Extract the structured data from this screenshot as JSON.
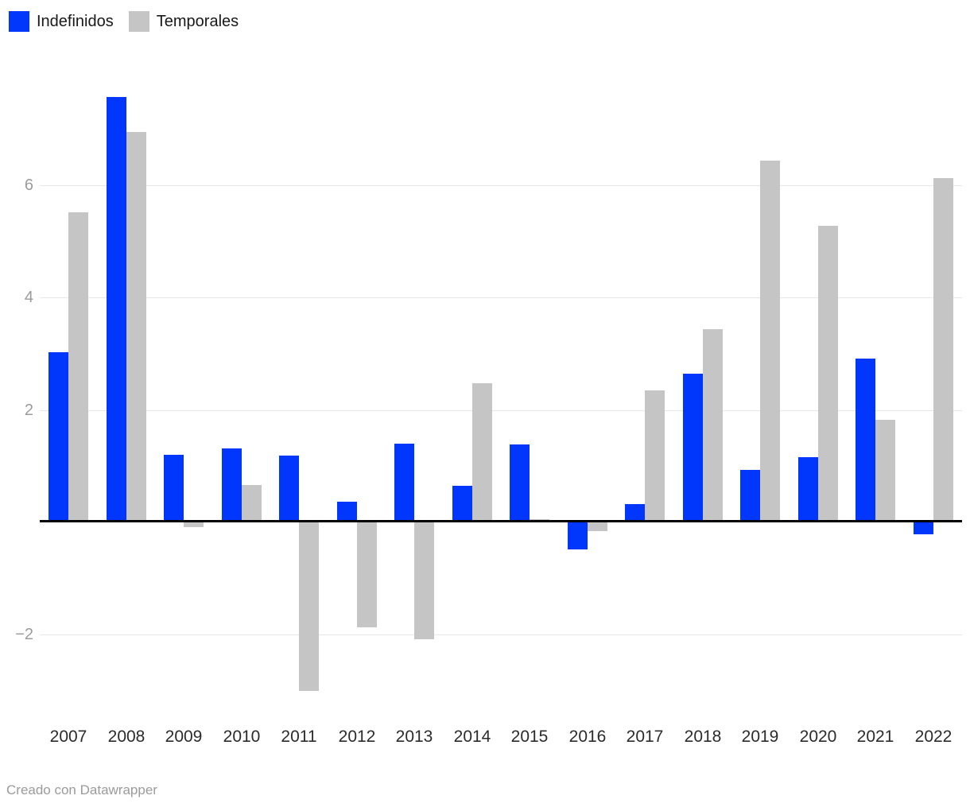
{
  "footer": {
    "text": "Creado con Datawrapper"
  },
  "chart_data": {
    "type": "bar",
    "title": "",
    "xlabel": "",
    "ylabel": "",
    "categories": [
      "2007",
      "2008",
      "2009",
      "2010",
      "2011",
      "2012",
      "2013",
      "2014",
      "2015",
      "2016",
      "2017",
      "2018",
      "2019",
      "2020",
      "2021",
      "2022"
    ],
    "series": [
      {
        "name": "Indefinidos",
        "color": "#0137fd",
        "values": [
          3.03,
          7.57,
          1.2,
          1.31,
          1.19,
          0.37,
          1.4,
          0.65,
          1.39,
          -0.48,
          0.33,
          2.64,
          0.93,
          1.16,
          2.91,
          -0.21
        ]
      },
      {
        "name": "Temporales",
        "color": "#c5c5c5",
        "values": [
          5.51,
          6.95,
          -0.08,
          0.67,
          -3.0,
          -1.86,
          -2.08,
          2.47,
          0.06,
          -0.16,
          2.35,
          3.43,
          6.43,
          5.28,
          1.83,
          6.13
        ]
      }
    ],
    "yticks": [
      -2,
      2,
      4,
      6
    ],
    "ylim": [
      -3.1,
      7.8
    ],
    "grid": true,
    "zero_line": true,
    "legend_position": "top-left",
    "colors": {
      "grid": "#e7e7e7",
      "zero_line": "#000000",
      "ytick_label": "#9b9b9b",
      "xtick_label": "#2b2b2b"
    }
  }
}
